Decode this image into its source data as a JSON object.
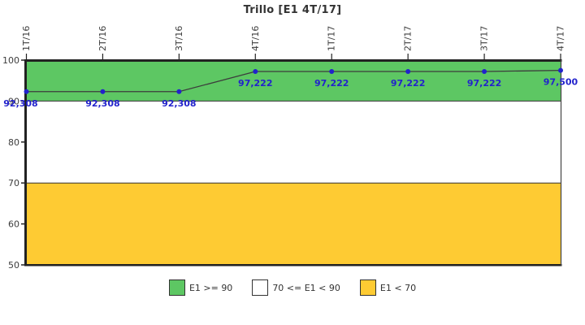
{
  "title": "Trillo [E1 4T/17]",
  "chart_data": {
    "type": "line",
    "title": "Trillo [E1 4T/17]",
    "categories": [
      "1T/16",
      "2T/16",
      "3T/16",
      "4T/16",
      "1T/17",
      "2T/17",
      "3T/17",
      "4T/17"
    ],
    "series": [
      {
        "name": "E1",
        "values": [
          92.308,
          92.308,
          92.308,
          97.222,
          97.222,
          97.222,
          97.222,
          97.5
        ]
      }
    ],
    "point_labels": [
      "92,308",
      "92,308",
      "92,308",
      "97,222",
      "97,222",
      "97,222",
      "97,222",
      "97,500"
    ],
    "xlabel": "",
    "ylabel": "",
    "ylim": [
      50,
      100
    ],
    "yticks": [
      50,
      60,
      70,
      80,
      90,
      100
    ],
    "grid": false,
    "legend_position": "bottom",
    "bands": [
      {
        "label": "E1 >= 90",
        "from": 90,
        "to": 100,
        "color": "#5DC763"
      },
      {
        "label": "70 <= E1 < 90",
        "from": 70,
        "to": 90,
        "color": "#FFFFFF"
      },
      {
        "label": "E1 < 70",
        "from": 50,
        "to": 70,
        "color": "#FECB33"
      }
    ],
    "line_color": "#3C3C3C",
    "point_color": "#2222CC",
    "label_color": "#2222CC",
    "axis_color": "#222222",
    "tick_label_color": "#3d3d3d"
  },
  "legend": {
    "items": [
      {
        "label": "E1 >= 90",
        "color": "#5DC763"
      },
      {
        "label": "70 <= E1 < 90",
        "color": "#FFFFFF"
      },
      {
        "label": "E1 < 70",
        "color": "#FECB33"
      }
    ]
  }
}
